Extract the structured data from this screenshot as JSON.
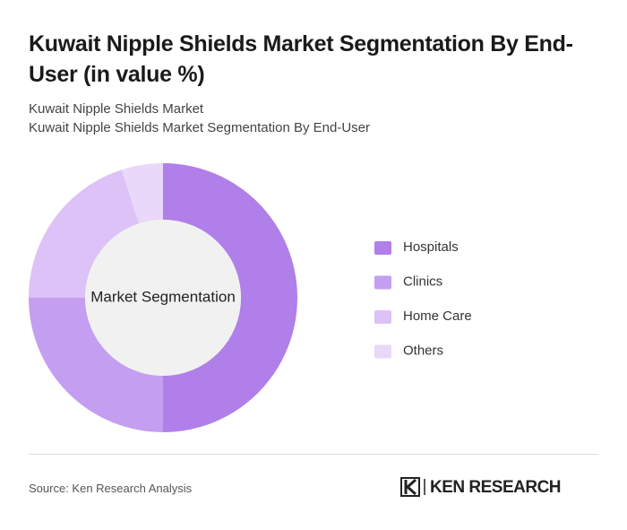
{
  "chart_data": {
    "type": "donut",
    "title": "Kuwait Nipple Shields Market Segmentation By End-User (in value %)",
    "subtitle": [
      "Kuwait Nipple Shields Market",
      "Kuwait Nipple Shields Market Segmentation By End-User"
    ],
    "center_label": "Market Segmentation",
    "categories": [
      "Hospitals",
      "Clinics",
      "Home Care",
      "Others"
    ],
    "values": [
      50,
      25,
      20,
      5
    ],
    "colors": [
      "#b07fe9",
      "#c49ef0",
      "#dcc2f6",
      "#e9d8f9"
    ]
  },
  "source": "Source: Ken Research Analysis",
  "logo": "KEN RESEARCH"
}
